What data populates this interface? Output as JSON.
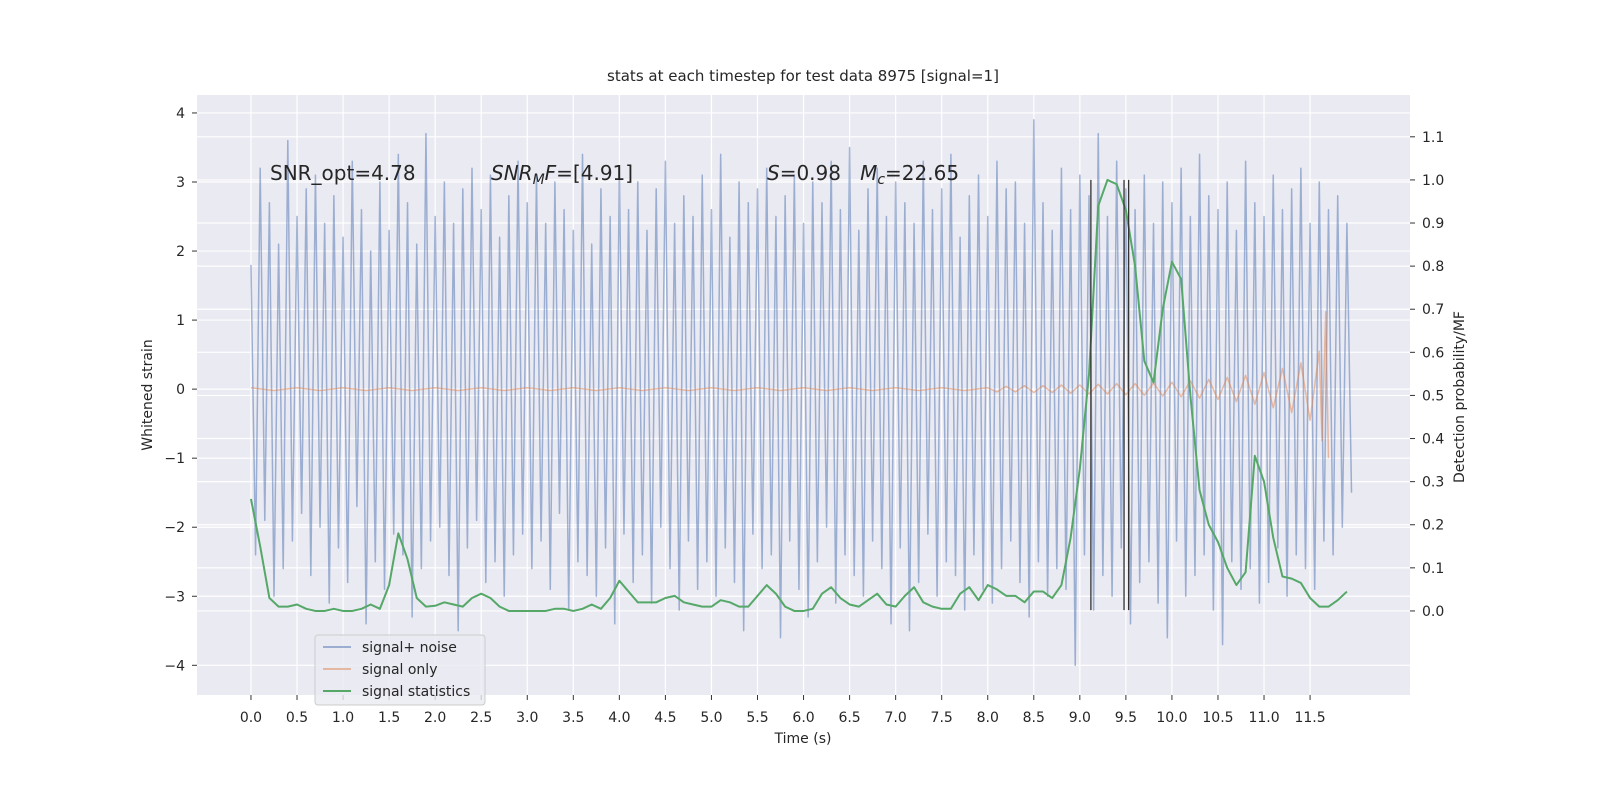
{
  "chart_data": {
    "type": "line",
    "title": "stats at each timestep for test data 8975 [signal=1]",
    "xlabel": "Time (s)",
    "ylabel": "Whitened strain",
    "y2label": "Detection probability/MF",
    "xlim": [
      -0.586,
      12.585
    ],
    "ylim": [
      -4.43,
      4.26
    ],
    "y2lim": [
      -0.195,
      1.197
    ],
    "grid": true,
    "legend": "lower left",
    "xticks": [
      {
        "value": 0,
        "label": "0.0"
      },
      {
        "value": 0.5,
        "label": "0.5"
      },
      {
        "value": 1,
        "label": "1.0"
      },
      {
        "value": 1.5,
        "label": "1.5"
      },
      {
        "value": 2,
        "label": "2.0"
      },
      {
        "value": 2.5,
        "label": "2.5"
      },
      {
        "value": 3,
        "label": "3.0"
      },
      {
        "value": 3.5,
        "label": "3.5"
      },
      {
        "value": 4,
        "label": "4.0"
      },
      {
        "value": 4.5,
        "label": "4.5"
      },
      {
        "value": 5,
        "label": "5.0"
      },
      {
        "value": 5.5,
        "label": "5.5"
      },
      {
        "value": 6,
        "label": "6.0"
      },
      {
        "value": 6.5,
        "label": "6.5"
      },
      {
        "value": 7,
        "label": "7.0"
      },
      {
        "value": 7.5,
        "label": "7.5"
      },
      {
        "value": 8,
        "label": "8.0"
      },
      {
        "value": 8.5,
        "label": "8.5"
      },
      {
        "value": 9,
        "label": "9.0"
      },
      {
        "value": 9.5,
        "label": "9.5"
      },
      {
        "value": 10,
        "label": "10.0"
      },
      {
        "value": 10.5,
        "label": "10.5"
      },
      {
        "value": 11,
        "label": "11.0"
      },
      {
        "value": 11.5,
        "label": "11.5"
      }
    ],
    "yticks": [
      {
        "value": -4,
        "label": "−4"
      },
      {
        "value": -3,
        "label": "−3"
      },
      {
        "value": -2,
        "label": "−2"
      },
      {
        "value": -1,
        "label": "−1"
      },
      0,
      1,
      2,
      3,
      4
    ],
    "y2ticks": [
      {
        "value": 0,
        "label": "0.0"
      },
      {
        "value": 0.1,
        "label": "0.1"
      },
      {
        "value": 0.2,
        "label": "0.2"
      },
      {
        "value": 0.3,
        "label": "0.3"
      },
      {
        "value": 0.4,
        "label": "0.4"
      },
      {
        "value": 0.5,
        "label": "0.5"
      },
      {
        "value": 0.6,
        "label": "0.6"
      },
      {
        "value": 0.7,
        "label": "0.7"
      },
      {
        "value": 0.8,
        "label": "0.8"
      },
      {
        "value": 0.9,
        "label": "0.9"
      },
      {
        "value": 1.0,
        "label": "1.0"
      },
      {
        "value": 1.1,
        "label": "1.1"
      }
    ],
    "annotations": [
      [
        {
          "text": "SNR_opt=4.78",
          "style": "normal"
        }
      ],
      [
        {
          "text": "SNR",
          "style": "italic"
        },
        {
          "text": "M",
          "style": "sub"
        },
        {
          "text": "F",
          "style": "italic"
        },
        {
          "text": "=[4.91]",
          "style": "normal"
        }
      ],
      [
        {
          "text": "S",
          "style": "italic"
        },
        {
          "text": "=0.98   ",
          "style": "normal"
        },
        {
          "text": "M",
          "style": "italic"
        },
        {
          "text": "c",
          "style": "sub"
        },
        {
          "text": "=22.65",
          "style": "normal"
        }
      ]
    ],
    "vlines": {
      "x": [
        9.12,
        9.48,
        9.53
      ],
      "ymin": -3.2,
      "ymax": 3.03,
      "color": "#333333"
    },
    "series": [
      {
        "name": "signal+ noise",
        "color": "#4c72b0",
        "opacity": 0.5,
        "axis": "y",
        "x": [
          0,
          0.05,
          0.1,
          0.15,
          0.2,
          0.25,
          0.3,
          0.35,
          0.4,
          0.45,
          0.5,
          0.55,
          0.6,
          0.65,
          0.7,
          0.75,
          0.8,
          0.85,
          0.9,
          0.95,
          1,
          1.05,
          1.1,
          1.15,
          1.2,
          1.25,
          1.3,
          1.35,
          1.4,
          1.45,
          1.5,
          1.55,
          1.6,
          1.65,
          1.7,
          1.75,
          1.8,
          1.85,
          1.9,
          1.95,
          2,
          2.05,
          2.1,
          2.15,
          2.2,
          2.25,
          2.3,
          2.35,
          2.4,
          2.45,
          2.5,
          2.55,
          2.6,
          2.65,
          2.7,
          2.75,
          2.8,
          2.85,
          2.9,
          2.95,
          3,
          3.05,
          3.1,
          3.15,
          3.2,
          3.25,
          3.3,
          3.35,
          3.4,
          3.45,
          3.5,
          3.55,
          3.6,
          3.65,
          3.7,
          3.75,
          3.8,
          3.85,
          3.9,
          3.95,
          4,
          4.05,
          4.1,
          4.15,
          4.2,
          4.25,
          4.3,
          4.35,
          4.4,
          4.45,
          4.5,
          4.55,
          4.6,
          4.65,
          4.7,
          4.75,
          4.8,
          4.85,
          4.9,
          4.95,
          5,
          5.05,
          5.1,
          5.15,
          5.2,
          5.25,
          5.3,
          5.35,
          5.4,
          5.45,
          5.5,
          5.55,
          5.6,
          5.65,
          5.7,
          5.75,
          5.8,
          5.85,
          5.9,
          5.95,
          6,
          6.05,
          6.1,
          6.15,
          6.2,
          6.25,
          6.3,
          6.35,
          6.4,
          6.45,
          6.5,
          6.55,
          6.6,
          6.65,
          6.7,
          6.75,
          6.8,
          6.85,
          6.9,
          6.95,
          7,
          7.05,
          7.1,
          7.15,
          7.2,
          7.25,
          7.3,
          7.35,
          7.4,
          7.45,
          7.5,
          7.55,
          7.6,
          7.65,
          7.7,
          7.75,
          7.8,
          7.85,
          7.9,
          7.95,
          8,
          8.05,
          8.1,
          8.15,
          8.2,
          8.25,
          8.3,
          8.35,
          8.4,
          8.45,
          8.5,
          8.55,
          8.6,
          8.65,
          8.7,
          8.75,
          8.8,
          8.85,
          8.9,
          8.95,
          9,
          9.05,
          9.1,
          9.15,
          9.2,
          9.25,
          9.3,
          9.35,
          9.4,
          9.45,
          9.5,
          9.55,
          9.6,
          9.65,
          9.7,
          9.75,
          9.8,
          9.85,
          9.9,
          9.95,
          10,
          10.05,
          10.1,
          10.15,
          10.2,
          10.25,
          10.3,
          10.35,
          10.4,
          10.45,
          10.5,
          10.55,
          10.6,
          10.65,
          10.7,
          10.75,
          10.8,
          10.85,
          10.9,
          10.95,
          11,
          11.05,
          11.1,
          11.15,
          11.2,
          11.25,
          11.3,
          11.35,
          11.4,
          11.45,
          11.5,
          11.55,
          11.6,
          11.65,
          11.7,
          11.75,
          11.8,
          11.85,
          11.9,
          11.95
        ],
        "values": [
          1.8,
          -2.4,
          3.2,
          -1.9,
          2.7,
          -3.0,
          2.1,
          -2.6,
          3.6,
          -2.2,
          2.5,
          -1.8,
          2.9,
          -2.7,
          3.1,
          -2.0,
          2.4,
          -3.1,
          2.8,
          -2.3,
          2.2,
          -2.8,
          3.3,
          -1.7,
          2.6,
          -3.4,
          2.0,
          -2.5,
          3.0,
          -2.9,
          2.3,
          -2.1,
          3.4,
          -2.4,
          2.7,
          -3.3,
          2.1,
          -2.6,
          3.7,
          -2.2,
          2.5,
          -2.0,
          3.0,
          -2.7,
          2.4,
          -3.5,
          2.9,
          -2.3,
          3.2,
          -1.9,
          2.6,
          -2.8,
          3.1,
          -2.5,
          2.2,
          -3.0,
          2.8,
          -2.4,
          3.3,
          -2.1,
          2.7,
          -2.6,
          3.1,
          -2.2,
          2.4,
          -2.9,
          3.0,
          -1.8,
          2.6,
          -3.2,
          2.3,
          -2.5,
          3.4,
          -2.7,
          2.1,
          -3.0,
          2.9,
          -2.3,
          2.5,
          -3.4,
          3.2,
          -2.1,
          2.6,
          -2.8,
          3.0,
          -2.4,
          2.3,
          -3.1,
          2.9,
          -2.0,
          3.3,
          -2.6,
          2.4,
          -3.2,
          2.8,
          -2.2,
          2.5,
          -2.9,
          3.1,
          -2.5,
          2.6,
          -3.0,
          3.4,
          -2.3,
          2.2,
          -2.8,
          3.0,
          -3.5,
          2.7,
          -2.1,
          2.9,
          -2.6,
          3.2,
          -2.4,
          2.5,
          -3.6,
          2.8,
          -2.2,
          3.1,
          -2.9,
          2.4,
          -3.3,
          3.0,
          -2.5,
          2.7,
          -2.0,
          3.3,
          -3.1,
          2.6,
          -2.4,
          3.5,
          -2.7,
          2.3,
          -3.0,
          2.9,
          -2.2,
          3.2,
          -2.6,
          2.5,
          -3.4,
          3.0,
          -2.3,
          2.7,
          -3.5,
          2.4,
          -2.8,
          3.3,
          -2.1,
          2.6,
          -3.0,
          2.9,
          -2.5,
          3.4,
          -2.7,
          2.2,
          -3.2,
          2.8,
          -2.4,
          3.1,
          -2.9,
          2.5,
          -3.1,
          3.3,
          -2.6,
          2.9,
          -2.2,
          3.0,
          -2.8,
          2.4,
          -3.3,
          3.9,
          -2.5,
          2.7,
          -3.0,
          2.3,
          -2.6,
          3.2,
          -2.9,
          2.6,
          -4.0,
          3.1,
          -2.4,
          2.8,
          -3.2,
          3.7,
          -2.7,
          2.5,
          -3.0,
          3.3,
          -2.3,
          2.9,
          -3.4,
          2.6,
          -2.8,
          3.1,
          -2.5,
          2.4,
          -3.1,
          3.0,
          -3.6,
          2.7,
          -2.2,
          3.2,
          -3.0,
          2.5,
          -2.7,
          3.4,
          -2.4,
          2.8,
          -3.2,
          2.6,
          -3.7,
          3.0,
          -2.5,
          2.3,
          -2.9,
          3.3,
          -2.6,
          2.7,
          -3.1,
          2.5,
          -2.8,
          3.1,
          -2.3,
          2.6,
          -3.0,
          2.9,
          -2.4,
          3.2,
          -2.6,
          2.4,
          -2.9,
          3.0,
          -2.2,
          2.6,
          -2.4,
          2.8,
          -2.0,
          2.4,
          -1.5
        ]
      },
      {
        "name": "signal only",
        "color": "#dd8452",
        "opacity": 0.5,
        "axis": "y",
        "x": [
          0,
          0.25,
          0.5,
          0.75,
          1,
          1.25,
          1.5,
          1.75,
          2,
          2.25,
          2.5,
          2.75,
          3,
          3.25,
          3.5,
          3.75,
          4,
          4.25,
          4.5,
          4.75,
          5,
          5.25,
          5.5,
          5.75,
          6,
          6.25,
          6.5,
          6.75,
          7,
          7.25,
          7.5,
          7.75,
          8,
          8.1,
          8.2,
          8.3,
          8.4,
          8.5,
          8.6,
          8.7,
          8.8,
          8.9,
          9,
          9.1,
          9.2,
          9.3,
          9.4,
          9.5,
          9.6,
          9.7,
          9.8,
          9.9,
          10,
          10.1,
          10.2,
          10.3,
          10.4,
          10.5,
          10.6,
          10.7,
          10.8,
          10.9,
          11,
          11.1,
          11.2,
          11.3,
          11.4,
          11.5,
          11.6,
          11.63,
          11.67,
          11.7
        ],
        "values": [
          0.02,
          -0.02,
          0.02,
          -0.02,
          0.02,
          -0.02,
          0.02,
          -0.02,
          0.02,
          -0.02,
          0.02,
          -0.02,
          0.02,
          -0.02,
          0.02,
          -0.02,
          0.02,
          -0.02,
          0.02,
          -0.02,
          0.02,
          -0.02,
          0.02,
          -0.02,
          0.02,
          -0.02,
          0.02,
          -0.02,
          0.02,
          -0.02,
          0.02,
          -0.02,
          0.02,
          -0.04,
          0.04,
          -0.04,
          0.05,
          -0.05,
          0.05,
          -0.05,
          0.06,
          -0.06,
          0.06,
          -0.07,
          0.07,
          -0.07,
          0.08,
          -0.08,
          0.08,
          -0.09,
          0.09,
          -0.1,
          0.1,
          -0.11,
          0.12,
          -0.13,
          0.14,
          -0.15,
          0.17,
          -0.18,
          0.2,
          -0.22,
          0.24,
          -0.27,
          0.3,
          -0.34,
          0.38,
          -0.45,
          0.55,
          -0.75,
          1.12,
          -1.0
        ]
      },
      {
        "name": "signal statistics",
        "color": "#55a868",
        "opacity": 1,
        "axis": "y2",
        "x": [
          0,
          0.1,
          0.2,
          0.3,
          0.4,
          0.5,
          0.6,
          0.7,
          0.8,
          0.9,
          1,
          1.1,
          1.2,
          1.3,
          1.4,
          1.5,
          1.6,
          1.7,
          1.8,
          1.9,
          2,
          2.1,
          2.2,
          2.3,
          2.4,
          2.5,
          2.6,
          2.7,
          2.8,
          2.9,
          3,
          3.1,
          3.2,
          3.3,
          3.4,
          3.5,
          3.6,
          3.7,
          3.8,
          3.9,
          4,
          4.1,
          4.2,
          4.3,
          4.4,
          4.5,
          4.6,
          4.7,
          4.8,
          4.9,
          5,
          5.1,
          5.2,
          5.3,
          5.4,
          5.5,
          5.6,
          5.7,
          5.8,
          5.9,
          6,
          6.1,
          6.2,
          6.3,
          6.4,
          6.5,
          6.6,
          6.7,
          6.8,
          6.9,
          7,
          7.1,
          7.2,
          7.3,
          7.4,
          7.5,
          7.6,
          7.7,
          7.8,
          7.9,
          8,
          8.1,
          8.2,
          8.3,
          8.4,
          8.5,
          8.6,
          8.7,
          8.8,
          8.9,
          9,
          9.1,
          9.2,
          9.3,
          9.4,
          9.5,
          9.6,
          9.7,
          9.8,
          9.9,
          10,
          10.1,
          10.2,
          10.3,
          10.4,
          10.5,
          10.6,
          10.7,
          10.8,
          10.9,
          11,
          11.1,
          11.2,
          11.3,
          11.4,
          11.5,
          11.6,
          11.7,
          11.8,
          11.9
        ],
        "values": [
          0.26,
          0.15,
          0.03,
          0.01,
          0.01,
          0.015,
          0.005,
          0,
          0,
          0.005,
          0,
          0,
          0.005,
          0.015,
          0.005,
          0.06,
          0.18,
          0.12,
          0.03,
          0.01,
          0.012,
          0.02,
          0.015,
          0.01,
          0.03,
          0.04,
          0.03,
          0.01,
          0,
          0,
          0,
          0,
          0,
          0.005,
          0.005,
          0,
          0.005,
          0.015,
          0.005,
          0.03,
          0.07,
          0.045,
          0.02,
          0.02,
          0.02,
          0.03,
          0.035,
          0.02,
          0.015,
          0.01,
          0.01,
          0.025,
          0.02,
          0.01,
          0.01,
          0.035,
          0.06,
          0.04,
          0.01,
          0,
          0,
          0.005,
          0.04,
          0.055,
          0.03,
          0.015,
          0.01,
          0.025,
          0.04,
          0.015,
          0.01,
          0.035,
          0.055,
          0.02,
          0.01,
          0.005,
          0.005,
          0.04,
          0.055,
          0.025,
          0.06,
          0.05,
          0.035,
          0.035,
          0.02,
          0.045,
          0.045,
          0.03,
          0.06,
          0.17,
          0.33,
          0.55,
          0.94,
          1.0,
          0.99,
          0.93,
          0.8,
          0.58,
          0.53,
          0.7,
          0.81,
          0.77,
          0.5,
          0.28,
          0.2,
          0.16,
          0.1,
          0.06,
          0.09,
          0.36,
          0.3,
          0.17,
          0.08,
          0.075,
          0.065,
          0.03,
          0.01,
          0.01,
          0.025,
          0.045
        ]
      }
    ]
  }
}
